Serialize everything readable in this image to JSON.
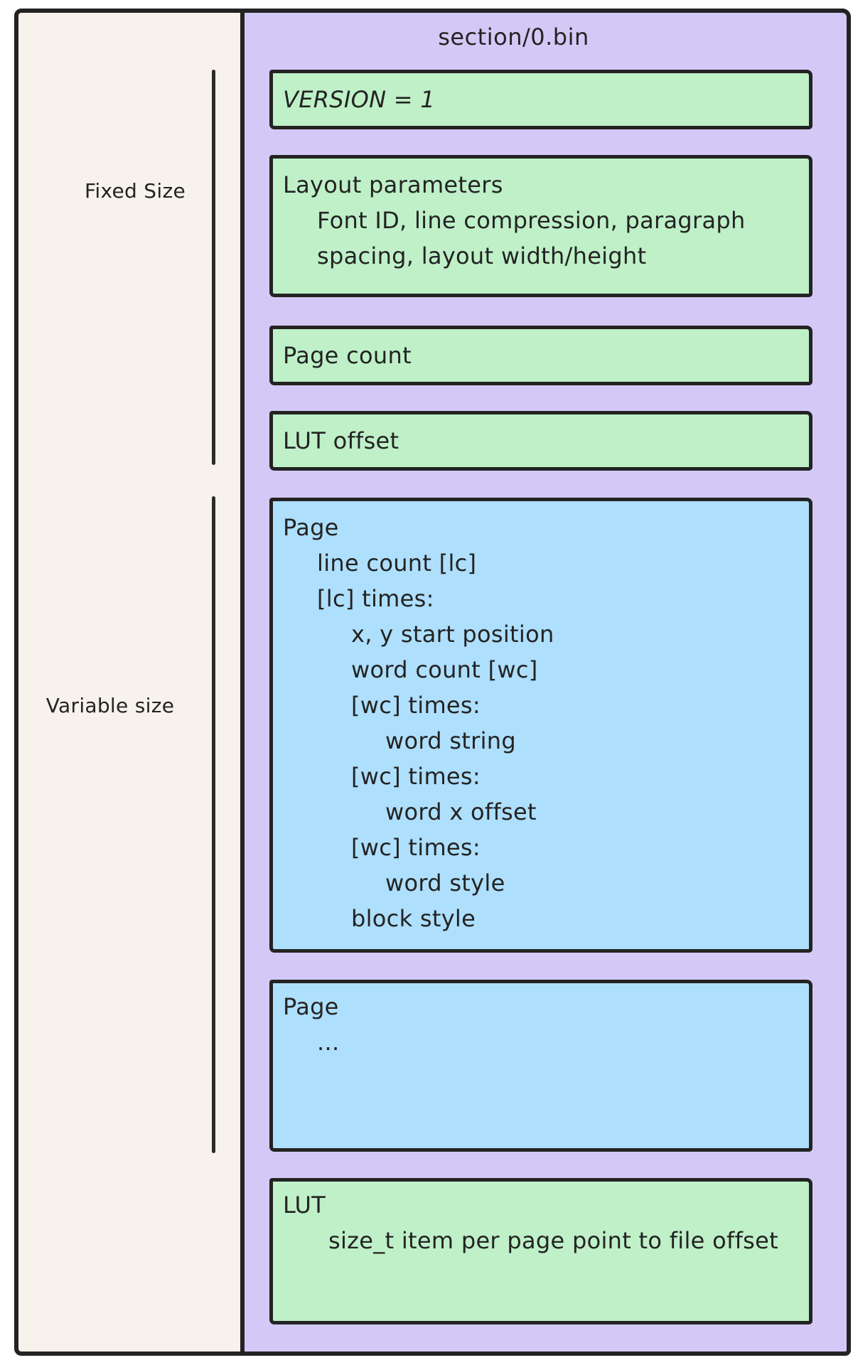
{
  "diagram": {
    "title": "section/0.bin",
    "groups": [
      {
        "label": "Fixed Size"
      },
      {
        "label": "Variable size"
      }
    ],
    "blocks": [
      {
        "id": "version",
        "fill": "green",
        "lines": [
          {
            "indent": 0,
            "text": "VERSION = 1"
          }
        ]
      },
      {
        "id": "layout-parameters",
        "fill": "green",
        "lines": [
          {
            "indent": 0,
            "text": "Layout parameters"
          },
          {
            "indent": 1,
            "text": "Font ID, line compression, paragraph spacing, layout width/height"
          }
        ]
      },
      {
        "id": "page-count",
        "fill": "green",
        "lines": [
          {
            "indent": 0,
            "text": "Page count"
          }
        ]
      },
      {
        "id": "lut-offset",
        "fill": "green",
        "lines": [
          {
            "indent": 0,
            "text": "LUT offset"
          }
        ]
      },
      {
        "id": "page-detail",
        "fill": "blue",
        "lines": [
          {
            "indent": 0,
            "text": "Page"
          },
          {
            "indent": 1,
            "text": "line count [lc]"
          },
          {
            "indent": 1,
            "text": "[lc] times:"
          },
          {
            "indent": 2,
            "text": "x, y start position"
          },
          {
            "indent": 2,
            "text": "word count [wc]"
          },
          {
            "indent": 2,
            "text": "[wc] times:"
          },
          {
            "indent": 3,
            "text": "word string"
          },
          {
            "indent": 2,
            "text": "[wc] times:"
          },
          {
            "indent": 3,
            "text": "word x offset"
          },
          {
            "indent": 2,
            "text": "[wc] times:"
          },
          {
            "indent": 3,
            "text": "word style"
          },
          {
            "indent": 2,
            "text": "block style"
          }
        ]
      },
      {
        "id": "page-more",
        "fill": "blue",
        "lines": [
          {
            "indent": 0,
            "text": "Page"
          },
          {
            "indent": 1,
            "text": "..."
          }
        ]
      },
      {
        "id": "lut",
        "fill": "green",
        "lines": [
          {
            "indent": 0,
            "text": "LUT"
          },
          {
            "indent": 1,
            "text": "size_t item per page point to file offset"
          }
        ]
      }
    ],
    "colors": {
      "panel_purple": "#d4c9f6",
      "block_green": "#bff0c8",
      "block_blue": "#aedffc",
      "background_cream": "#f8f2ed",
      "ink": "#232323"
    }
  }
}
